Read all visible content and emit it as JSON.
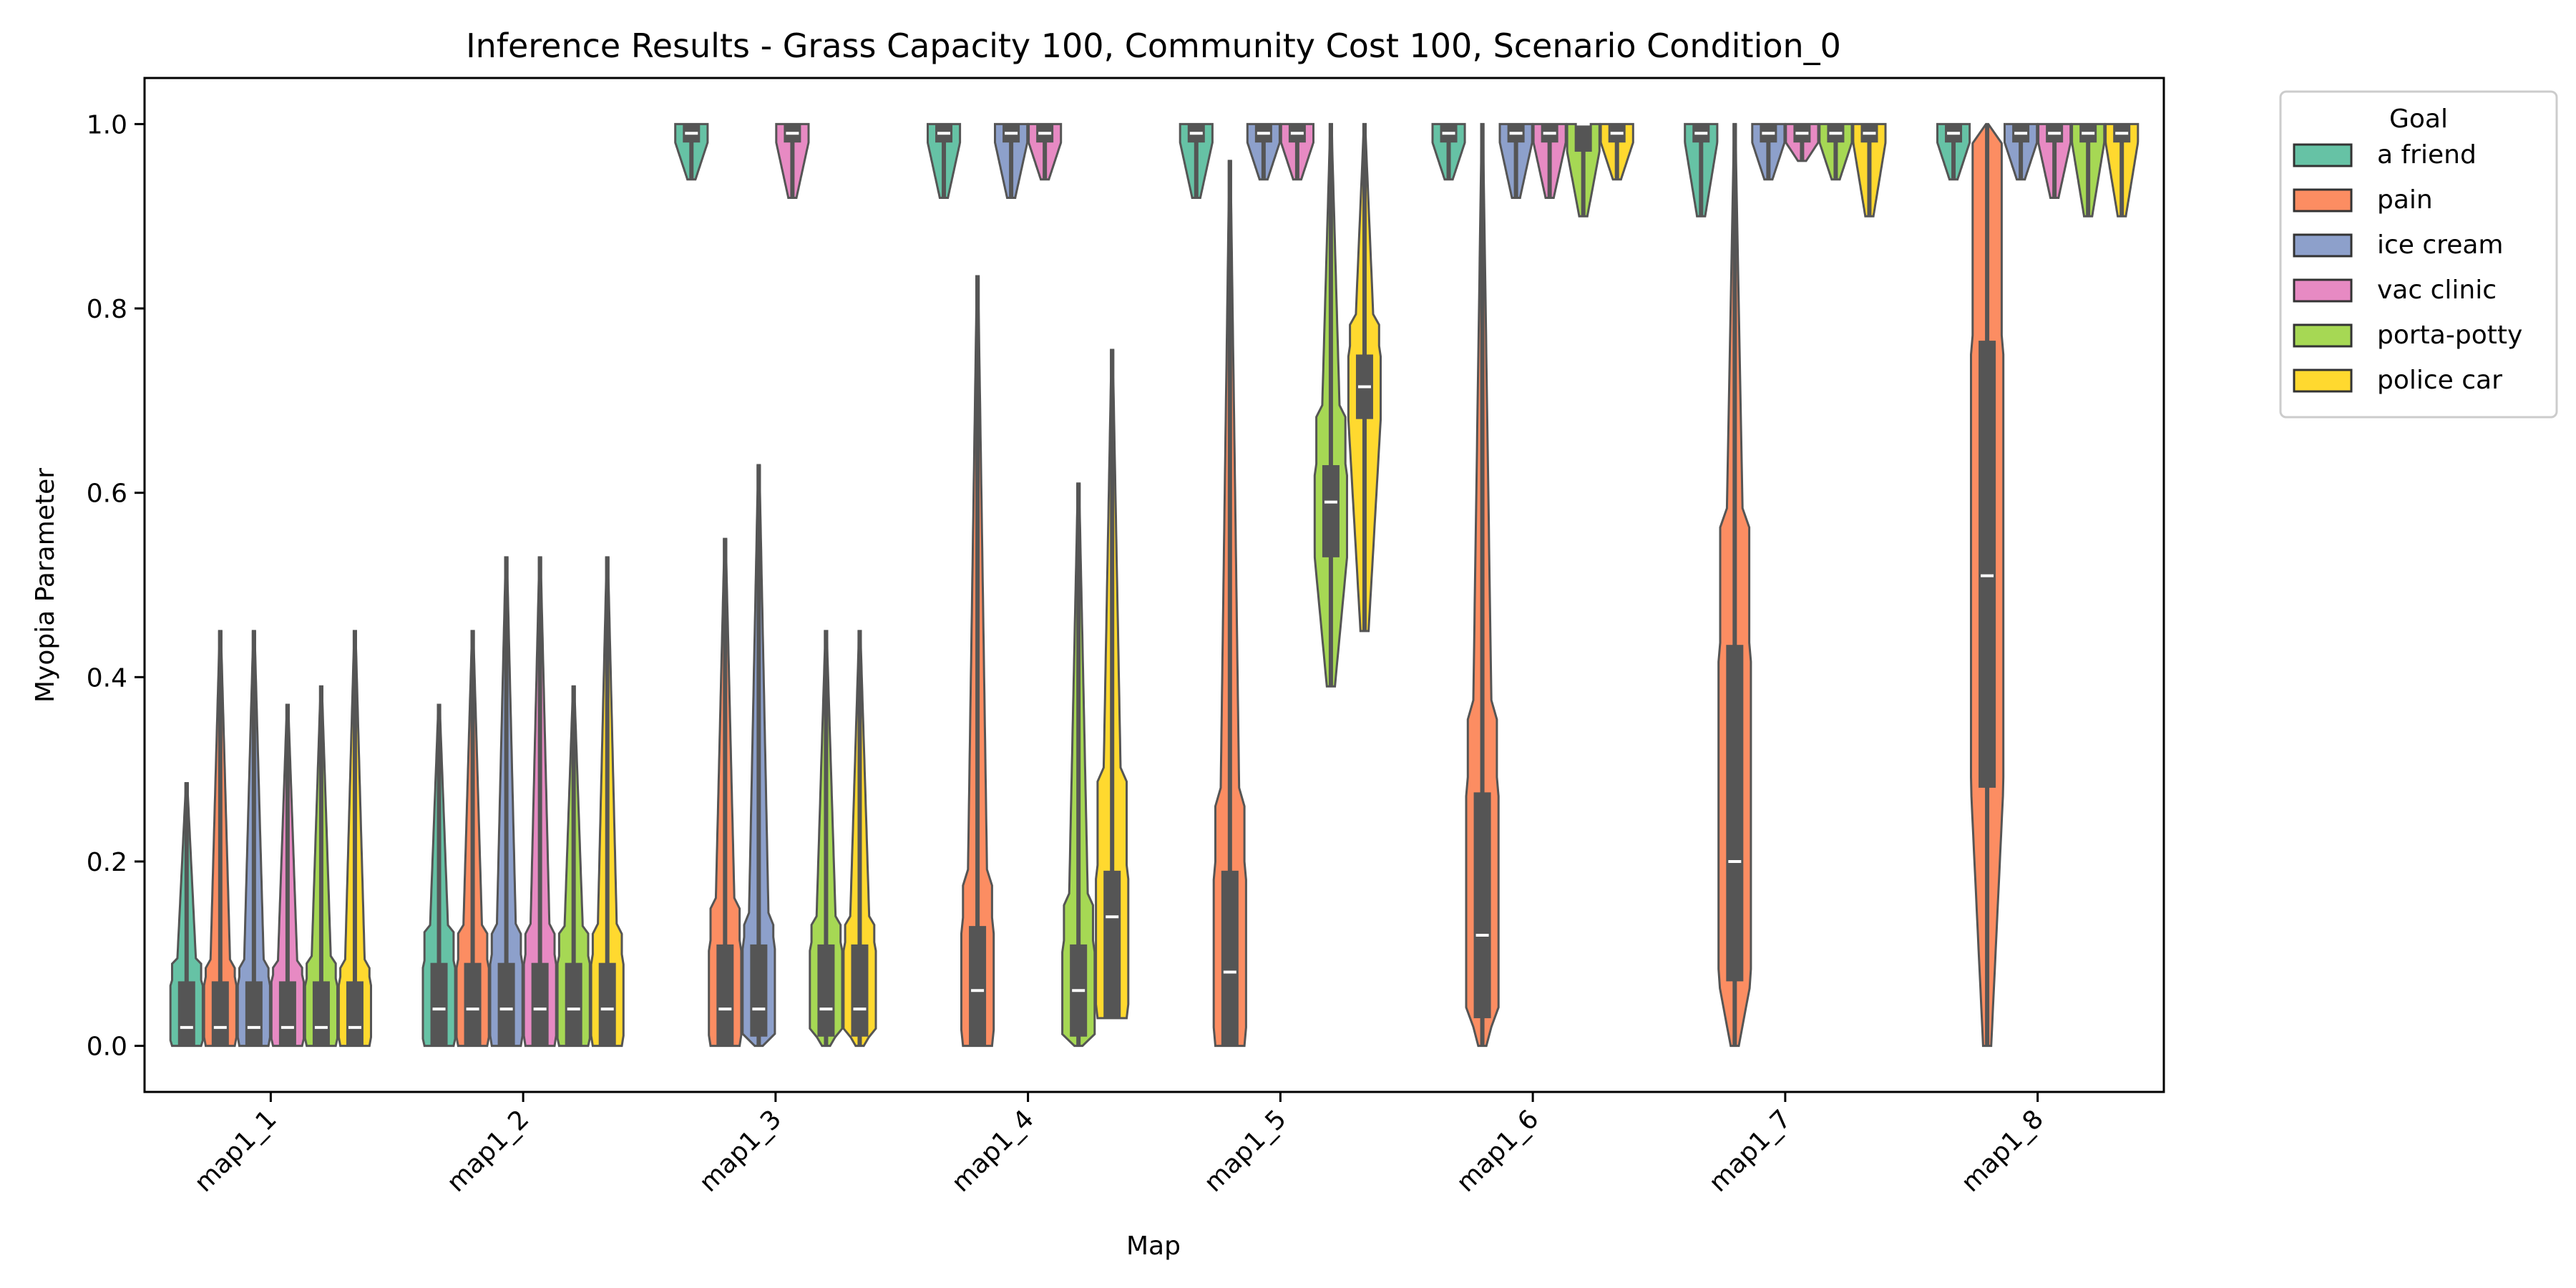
{
  "chart_data": {
    "type": "violin",
    "title": "Inference Results - Grass Capacity 100, Community Cost 100, Scenario Condition_0",
    "xlabel": "Map",
    "ylabel": "Myopia Parameter",
    "categories": [
      "map1_1",
      "map1_2",
      "map1_3",
      "map1_4",
      "map1_5",
      "map1_6",
      "map1_7",
      "map1_8"
    ],
    "ylim": [
      -0.05,
      1.05
    ],
    "yticks": [
      "0.0",
      "0.2",
      "0.4",
      "0.6",
      "0.8",
      "1.0"
    ],
    "ytick_values": [
      0.0,
      0.2,
      0.4,
      0.6,
      0.8,
      1.0
    ],
    "grid": false,
    "legend": {
      "title": "Goal",
      "placement": "outside upper right",
      "entries": [
        "a friend",
        "pain",
        "ice cream",
        "vac clinic",
        "porta-potty",
        "police car"
      ]
    },
    "series": [
      {
        "name": "a friend",
        "color": "#66c2a5",
        "violins": [
          {
            "map": "map1_1",
            "min": 0.0,
            "q1": 0.0,
            "median": 0.02,
            "q3": 0.07,
            "max": 0.285
          },
          {
            "map": "map1_2",
            "min": 0.0,
            "q1": 0.0,
            "median": 0.04,
            "q3": 0.09,
            "max": 0.37
          },
          {
            "map": "map1_3",
            "min": 0.94,
            "q1": 0.98,
            "median": 0.99,
            "q3": 1.0,
            "max": 1.0
          },
          {
            "map": "map1_4",
            "min": 0.92,
            "q1": 0.98,
            "median": 0.99,
            "q3": 1.0,
            "max": 1.0
          },
          {
            "map": "map1_5",
            "min": 0.92,
            "q1": 0.98,
            "median": 0.99,
            "q3": 1.0,
            "max": 1.0
          },
          {
            "map": "map1_6",
            "min": 0.94,
            "q1": 0.98,
            "median": 0.99,
            "q3": 1.0,
            "max": 1.0
          },
          {
            "map": "map1_7",
            "min": 0.9,
            "q1": 0.98,
            "median": 0.99,
            "q3": 1.0,
            "max": 1.0
          },
          {
            "map": "map1_8",
            "min": 0.94,
            "q1": 0.98,
            "median": 0.99,
            "q3": 1.0,
            "max": 1.0
          }
        ]
      },
      {
        "name": "pain",
        "color": "#fc8d62",
        "violins": [
          {
            "map": "map1_1",
            "min": 0.0,
            "q1": 0.0,
            "median": 0.02,
            "q3": 0.07,
            "max": 0.45
          },
          {
            "map": "map1_2",
            "min": 0.0,
            "q1": 0.0,
            "median": 0.04,
            "q3": 0.09,
            "max": 0.45
          },
          {
            "map": "map1_3",
            "min": 0.0,
            "q1": 0.0,
            "median": 0.04,
            "q3": 0.11,
            "max": 0.55
          },
          {
            "map": "map1_4",
            "min": 0.0,
            "q1": 0.0,
            "median": 0.06,
            "q3": 0.13,
            "max": 0.835
          },
          {
            "map": "map1_5",
            "min": 0.0,
            "q1": 0.0,
            "median": 0.08,
            "q3": 0.19,
            "max": 0.96
          },
          {
            "map": "map1_6",
            "min": 0.0,
            "q1": 0.03,
            "median": 0.12,
            "q3": 0.275,
            "max": 1.0
          },
          {
            "map": "map1_7",
            "min": 0.0,
            "q1": 0.07,
            "median": 0.2,
            "q3": 0.435,
            "max": 1.0
          },
          {
            "map": "map1_8",
            "min": 0.0,
            "q1": 0.28,
            "median": 0.51,
            "q3": 0.765,
            "max": 1.0
          }
        ]
      },
      {
        "name": "ice cream",
        "color": "#8da0cb",
        "violins": [
          {
            "map": "map1_1",
            "min": 0.0,
            "q1": 0.0,
            "median": 0.02,
            "q3": 0.07,
            "max": 0.45
          },
          {
            "map": "map1_2",
            "min": 0.0,
            "q1": 0.0,
            "median": 0.04,
            "q3": 0.09,
            "max": 0.53
          },
          {
            "map": "map1_3",
            "min": 0.0,
            "q1": 0.01,
            "median": 0.04,
            "q3": 0.11,
            "max": 0.63
          },
          {
            "map": "map1_4",
            "min": 0.92,
            "q1": 0.98,
            "median": 0.99,
            "q3": 1.0,
            "max": 1.0
          },
          {
            "map": "map1_5",
            "min": 0.94,
            "q1": 0.98,
            "median": 0.99,
            "q3": 1.0,
            "max": 1.0
          },
          {
            "map": "map1_6",
            "min": 0.92,
            "q1": 0.98,
            "median": 0.99,
            "q3": 1.0,
            "max": 1.0
          },
          {
            "map": "map1_7",
            "min": 0.94,
            "q1": 0.98,
            "median": 0.99,
            "q3": 1.0,
            "max": 1.0
          },
          {
            "map": "map1_8",
            "min": 0.94,
            "q1": 0.98,
            "median": 0.99,
            "q3": 1.0,
            "max": 1.0
          }
        ]
      },
      {
        "name": "vac clinic",
        "color": "#e78ac3",
        "violins": [
          {
            "map": "map1_1",
            "min": 0.0,
            "q1": 0.0,
            "median": 0.02,
            "q3": 0.07,
            "max": 0.37
          },
          {
            "map": "map1_2",
            "min": 0.0,
            "q1": 0.0,
            "median": 0.04,
            "q3": 0.09,
            "max": 0.53
          },
          {
            "map": "map1_3",
            "min": 0.92,
            "q1": 0.98,
            "median": 0.99,
            "q3": 1.0,
            "max": 1.0
          },
          {
            "map": "map1_4",
            "min": 0.94,
            "q1": 0.98,
            "median": 0.99,
            "q3": 1.0,
            "max": 1.0
          },
          {
            "map": "map1_5",
            "min": 0.94,
            "q1": 0.98,
            "median": 0.99,
            "q3": 1.0,
            "max": 1.0
          },
          {
            "map": "map1_6",
            "min": 0.92,
            "q1": 0.98,
            "median": 0.99,
            "q3": 1.0,
            "max": 1.0
          },
          {
            "map": "map1_7",
            "min": 0.96,
            "q1": 0.98,
            "median": 0.99,
            "q3": 1.0,
            "max": 1.0
          },
          {
            "map": "map1_8",
            "min": 0.92,
            "q1": 0.98,
            "median": 0.99,
            "q3": 1.0,
            "max": 1.0
          }
        ]
      },
      {
        "name": "porta-potty",
        "color": "#a6d854",
        "violins": [
          {
            "map": "map1_1",
            "min": 0.0,
            "q1": 0.0,
            "median": 0.02,
            "q3": 0.07,
            "max": 0.39
          },
          {
            "map": "map1_2",
            "min": 0.0,
            "q1": 0.0,
            "median": 0.04,
            "q3": 0.09,
            "max": 0.39
          },
          {
            "map": "map1_3",
            "min": 0.0,
            "q1": 0.01,
            "median": 0.04,
            "q3": 0.11,
            "max": 0.45
          },
          {
            "map": "map1_4",
            "min": 0.0,
            "q1": 0.01,
            "median": 0.06,
            "q3": 0.11,
            "max": 0.61
          },
          {
            "map": "map1_5",
            "min": 0.39,
            "q1": 0.53,
            "median": 0.59,
            "q3": 0.63,
            "max": 1.0
          },
          {
            "map": "map1_6",
            "min": 0.9,
            "q1": 0.97,
            "median": 1.0,
            "q3": 1.0,
            "max": 1.0
          },
          {
            "map": "map1_7",
            "min": 0.94,
            "q1": 0.98,
            "median": 0.99,
            "q3": 1.0,
            "max": 1.0
          },
          {
            "map": "map1_8",
            "min": 0.9,
            "q1": 0.98,
            "median": 0.99,
            "q3": 1.0,
            "max": 1.0
          }
        ]
      },
      {
        "name": "police car",
        "color": "#ffd92f",
        "violins": [
          {
            "map": "map1_1",
            "min": 0.0,
            "q1": 0.0,
            "median": 0.02,
            "q3": 0.07,
            "max": 0.45
          },
          {
            "map": "map1_2",
            "min": 0.0,
            "q1": 0.0,
            "median": 0.04,
            "q3": 0.09,
            "max": 0.53
          },
          {
            "map": "map1_3",
            "min": 0.0,
            "q1": 0.01,
            "median": 0.04,
            "q3": 0.11,
            "max": 0.45
          },
          {
            "map": "map1_4",
            "min": 0.03,
            "q1": 0.03,
            "median": 0.14,
            "q3": 0.19,
            "max": 0.755
          },
          {
            "map": "map1_5",
            "min": 0.45,
            "q1": 0.68,
            "median": 0.715,
            "q3": 0.75,
            "max": 1.0
          },
          {
            "map": "map1_6",
            "min": 0.94,
            "q1": 0.98,
            "median": 0.99,
            "q3": 1.0,
            "max": 1.0
          },
          {
            "map": "map1_7",
            "min": 0.9,
            "q1": 0.98,
            "median": 0.99,
            "q3": 1.0,
            "max": 1.0
          },
          {
            "map": "map1_8",
            "min": 0.9,
            "q1": 0.98,
            "median": 0.99,
            "q3": 1.0,
            "max": 1.0
          }
        ]
      }
    ]
  }
}
